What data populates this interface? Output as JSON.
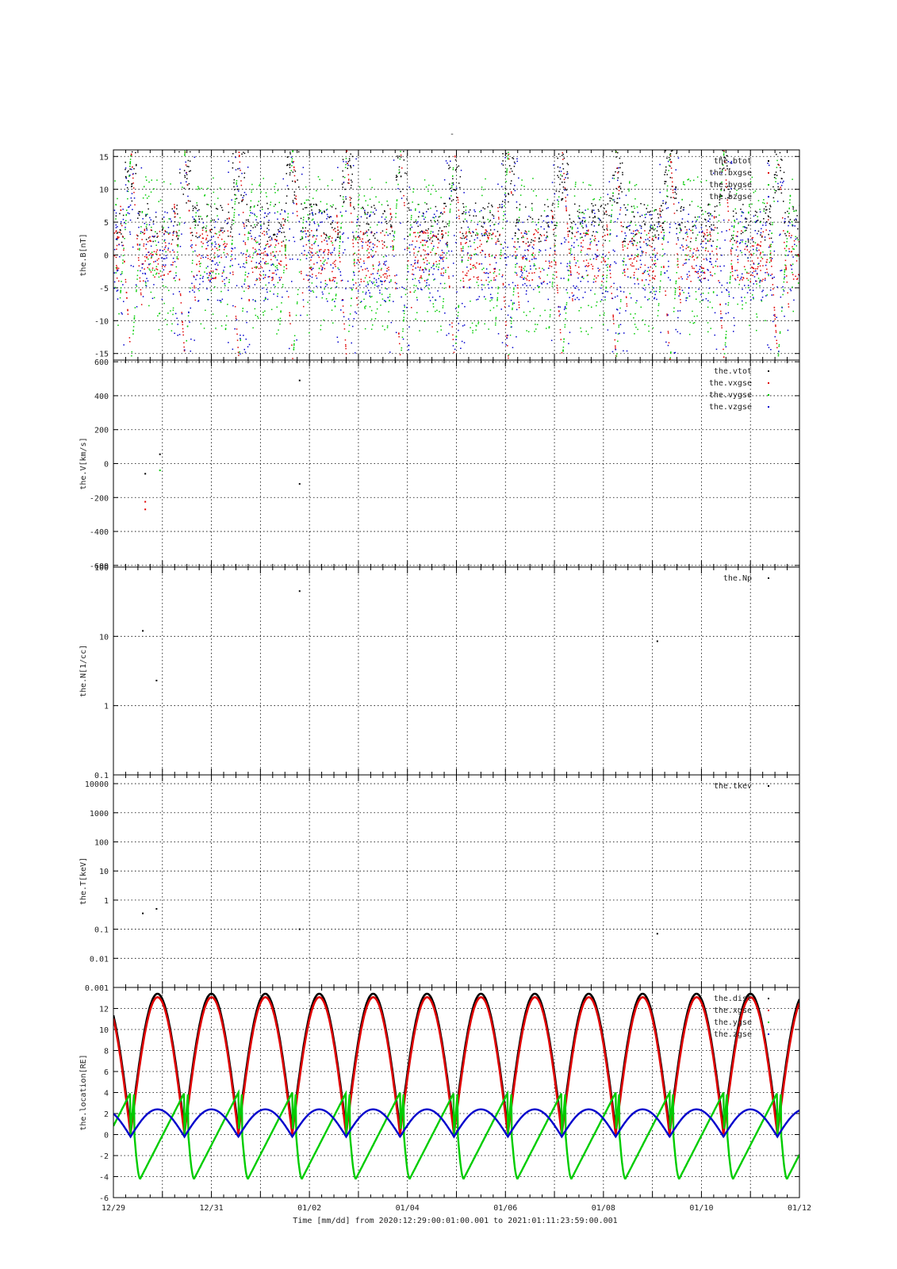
{
  "figure": {
    "top_title": "-",
    "xaxis_label": "Time [mm/dd]  from 2020:12:29:00:01:00.001  to  2021:01:11:23:59:00.001",
    "x_tick_labels": [
      "12/29",
      "12/31",
      "01/02",
      "01/04",
      "01/06",
      "01/08",
      "01/10",
      "01/12"
    ],
    "x_range_days": [
      0,
      14
    ],
    "x_tick_step_days": 1
  },
  "colors": {
    "black": "#000000",
    "red": "#e00000",
    "green": "#00cc00",
    "blue": "#0000cc"
  },
  "chart_data": [
    {
      "type": "scatter",
      "ylabel": "the.B[nT]",
      "ylim": [
        -16,
        16
      ],
      "yticks": [
        15,
        10,
        5,
        0,
        -5,
        -10,
        -15
      ],
      "grid": true,
      "legend_placement": "top-right",
      "series": [
        {
          "name": "the.btot",
          "color": "#000000"
        },
        {
          "name": "the.bxgse",
          "color": "#e00000"
        },
        {
          "name": "the.bygse",
          "color": "#00cc00"
        },
        {
          "name": "the.bzgse",
          "color": "#0000cc"
        }
      ],
      "note_points_estimated": true
    },
    {
      "type": "scatter",
      "ylabel": "the.V[km/s]",
      "ylim": [
        -610,
        610
      ],
      "yticks": [
        600,
        400,
        200,
        0,
        -200,
        -400,
        -600
      ],
      "grid": true,
      "legend_placement": "top-right",
      "series": [
        {
          "name": "the.vtot",
          "color": "#000000",
          "points": [
            [
              3.8,
              490
            ],
            [
              0.65,
              -60
            ],
            [
              0.95,
              55
            ],
            [
              3.8,
              -120
            ]
          ]
        },
        {
          "name": "the.vxgse",
          "color": "#e00000",
          "points": [
            [
              0.65,
              -270
            ],
            [
              0.65,
              -225
            ]
          ]
        },
        {
          "name": "the.vygse",
          "color": "#00cc00",
          "points": [
            [
              0.95,
              -40
            ]
          ]
        },
        {
          "name": "the.vzgse",
          "color": "#0000cc",
          "points": []
        }
      ]
    },
    {
      "type": "scatter",
      "ylabel": "the.N[1/cc]",
      "yscale": "log",
      "ylim": [
        0.1,
        100
      ],
      "yticks": [
        100,
        10,
        1,
        0.1
      ],
      "grid": true,
      "legend_placement": "top-right",
      "series": [
        {
          "name": "the.Np",
          "color": "#000000",
          "points": [
            [
              0.6,
              12
            ],
            [
              0.88,
              2.3
            ],
            [
              3.8,
              45
            ],
            [
              11.1,
              8.5
            ]
          ]
        }
      ]
    },
    {
      "type": "scatter",
      "ylabel": "the.T[keV]",
      "yscale": "log",
      "ylim": [
        0.001,
        20000
      ],
      "yticks": [
        10000,
        1000,
        100,
        10,
        1,
        0.1,
        0.01,
        0.001
      ],
      "grid": true,
      "legend_placement": "top-right",
      "series": [
        {
          "name": "the.tkev",
          "color": "#000000",
          "points": [
            [
              0.6,
              0.35
            ],
            [
              0.88,
              0.5
            ],
            [
              3.8,
              0.1
            ],
            [
              11.1,
              0.07
            ]
          ]
        }
      ]
    },
    {
      "type": "line",
      "ylabel": "the.location[RE]",
      "ylim": [
        -6,
        14
      ],
      "yticks": [
        12,
        10,
        8,
        6,
        4,
        2,
        0,
        -2,
        -4,
        -6
      ],
      "grid": true,
      "legend_placement": "top-right",
      "orbit_period_days": 1.1,
      "first_perigee_day": 0.35,
      "series": [
        {
          "name": "the.dist",
          "color": "#000000",
          "apogee": 13.4,
          "perigee": 0.5
        },
        {
          "name": "the.xgse",
          "color": "#e00000",
          "apogee": 13.2,
          "perigee": 0.0
        },
        {
          "name": "the.ygse",
          "color": "#00cc00",
          "min": -4.2,
          "max": 4.0
        },
        {
          "name": "the.zgse",
          "color": "#0000cc",
          "min": -0.2,
          "max": 2.4
        }
      ]
    }
  ]
}
